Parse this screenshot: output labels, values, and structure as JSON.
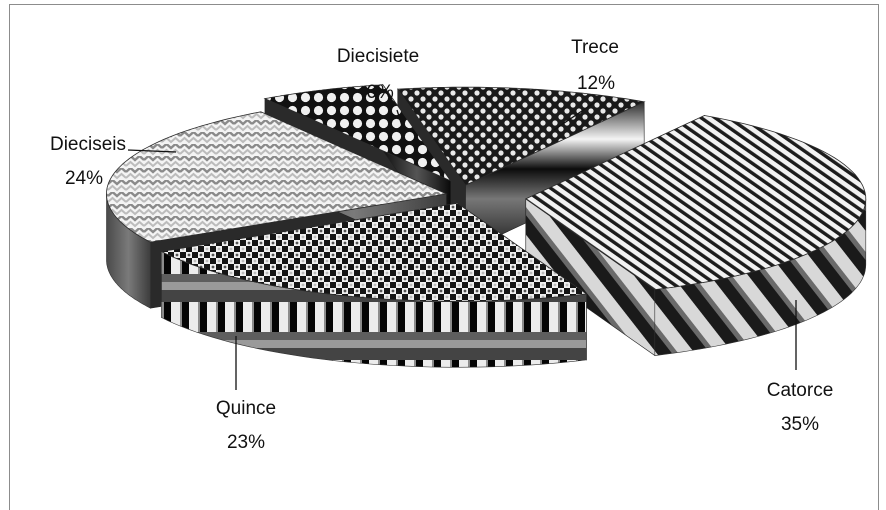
{
  "chart_data": {
    "type": "pie",
    "title": "",
    "style": "exploded 3D pie with black-and-white pattern fills",
    "slices": [
      {
        "name": "Trece",
        "value": 12,
        "label": "12%",
        "pattern": "checker-fine"
      },
      {
        "name": "Catorce",
        "value": 35,
        "label": "35%",
        "pattern": "diagonal-stripes"
      },
      {
        "name": "Quince",
        "value": 23,
        "label": "23%",
        "pattern": "checker-coarse"
      },
      {
        "name": "Dieciseis",
        "value": 24,
        "label": "24%",
        "pattern": "chevron-weave"
      },
      {
        "name": "Diecisiete",
        "value": 6,
        "label": "6%",
        "pattern": "checker-bold"
      }
    ],
    "legend": "none (category names and percentages shown as callout labels)"
  }
}
